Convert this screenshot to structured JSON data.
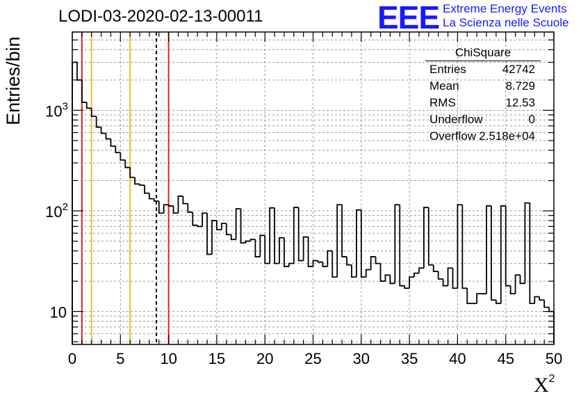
{
  "title": "LODI-03-2020-02-13-00011",
  "logo": {
    "mark": "EEE",
    "line1": "Extreme Energy Events",
    "line2": "La Scienza nelle Scuole"
  },
  "stats_box": {
    "title": "ChiSquare",
    "rows": [
      {
        "label": "Entries",
        "value": "42742"
      },
      {
        "label": "Mean",
        "value": "8.729"
      },
      {
        "label": "RMS",
        "value": "12.53"
      },
      {
        "label": "Underflow",
        "value": "0"
      },
      {
        "label": "Overflow",
        "value": "2.518e+04"
      }
    ]
  },
  "chart_data": {
    "type": "histogram",
    "xlabel": "X",
    "xlabel_superscript": "2",
    "ylabel": "Entries/bin",
    "xlim": [
      0,
      50
    ],
    "ylim": [
      4.7,
      6000
    ],
    "yscale": "log",
    "grid": true,
    "bin_width": 0.5,
    "x_ticks": [
      "0",
      "5",
      "10",
      "15",
      "20",
      "25",
      "30",
      "35",
      "40",
      "45",
      "50"
    ],
    "y_ticks": [
      {
        "value": 10,
        "label": "10"
      },
      {
        "value": 100,
        "label": "10",
        "exp": "2"
      },
      {
        "value": 1000,
        "label": "10",
        "exp": "3"
      }
    ],
    "bin_counts": [
      3000,
      2000,
      1200,
      1050,
      870,
      680,
      590,
      520,
      440,
      380,
      320,
      270,
      215,
      185,
      180,
      150,
      132,
      125,
      95,
      115,
      112,
      95,
      140,
      118,
      97,
      72,
      70,
      95,
      37,
      80,
      65,
      75,
      58,
      52,
      105,
      48,
      50,
      52,
      35,
      57,
      30,
      107,
      30,
      54,
      28,
      30,
      108,
      32,
      55,
      28,
      32,
      31,
      28,
      40,
      22,
      115,
      35,
      29,
      22,
      102,
      22,
      26,
      35,
      30,
      20,
      23,
      19,
      115,
      18,
      17,
      22,
      24,
      27,
      108,
      29,
      25,
      21,
      18,
      27,
      17,
      115,
      17,
      12,
      12,
      15,
      15,
      112,
      13,
      12,
      112,
      18,
      15,
      23,
      19,
      120,
      12,
      14,
      13,
      11,
      10
    ],
    "vertical_lines": [
      {
        "x": 1,
        "color": "#e02020",
        "style": "solid"
      },
      {
        "x": 2,
        "color": "#f0c020",
        "style": "solid"
      },
      {
        "x": 6,
        "color": "#f0c020",
        "style": "solid"
      },
      {
        "x": 8.729,
        "color": "#000000",
        "style": "dashed"
      },
      {
        "x": 10,
        "color": "#e02020",
        "style": "solid"
      }
    ]
  }
}
